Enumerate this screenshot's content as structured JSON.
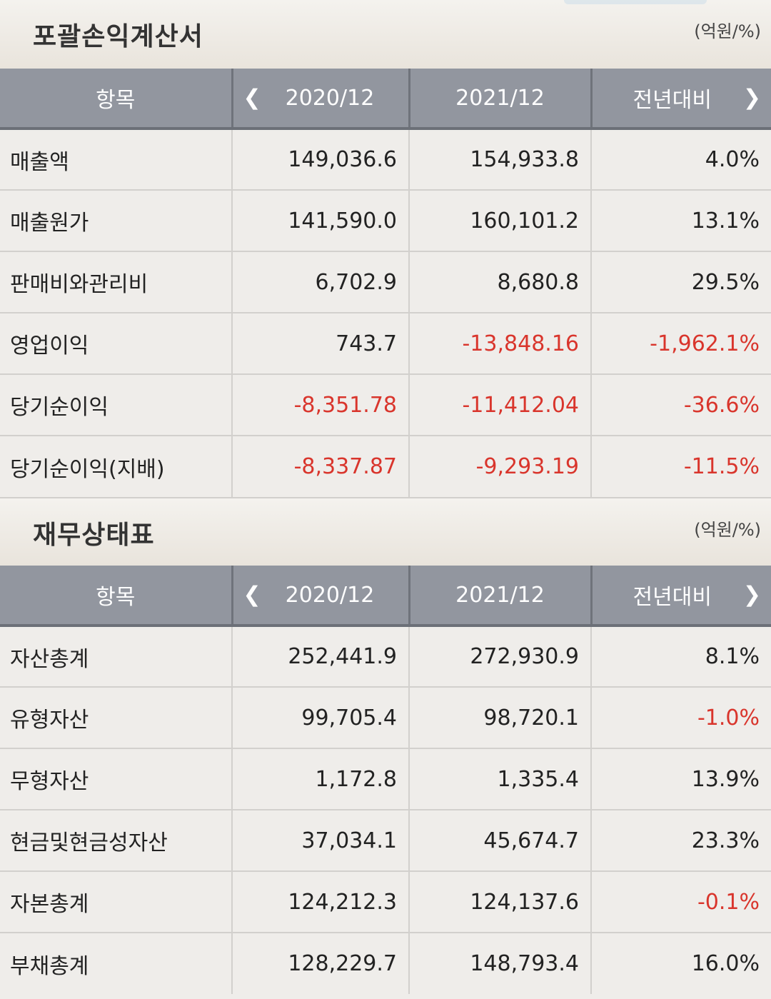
{
  "income": {
    "title": "포괄손익계산서",
    "unit": "(억원/%)",
    "headers": [
      "항목",
      "2020/12",
      "2021/12",
      "전년대비"
    ],
    "rows": [
      {
        "label": "매출액",
        "v2020": "149,036.6",
        "v2021": "154,933.8",
        "yoy": "4.0%"
      },
      {
        "label": "매출원가",
        "v2020": "141,590.0",
        "v2021": "160,101.2",
        "yoy": "13.1%"
      },
      {
        "label": "판매비와관리비",
        "v2020": "6,702.9",
        "v2021": "8,680.8",
        "yoy": "29.5%"
      },
      {
        "label": "영업이익",
        "v2020": "743.7",
        "v2021": "-13,848.16",
        "yoy": "-1,962.1%"
      },
      {
        "label": "당기순이익",
        "v2020": "-8,351.78",
        "v2021": "-11,412.04",
        "yoy": "-36.6%"
      },
      {
        "label": "당기순이익(지배)",
        "v2020": "-8,337.87",
        "v2021": "-9,293.19",
        "yoy": "-11.5%"
      }
    ]
  },
  "balance": {
    "title": "재무상태표",
    "unit": "(억원/%)",
    "headers": [
      "항목",
      "2020/12",
      "2021/12",
      "전년대비"
    ],
    "rows": [
      {
        "label": "자산총계",
        "v2020": "252,441.9",
        "v2021": "272,930.9",
        "yoy": "8.1%"
      },
      {
        "label": "유형자산",
        "v2020": "99,705.4",
        "v2021": "98,720.1",
        "yoy": "-1.0%"
      },
      {
        "label": "무형자산",
        "v2020": "1,172.8",
        "v2021": "1,335.4",
        "yoy": "13.9%"
      },
      {
        "label": "현금및현금성자산",
        "v2020": "37,034.1",
        "v2021": "45,674.7",
        "yoy": "23.3%"
      },
      {
        "label": "자본총계",
        "v2020": "124,212.3",
        "v2021": "124,137.6",
        "yoy": "-0.1%"
      },
      {
        "label": "부채총계",
        "v2020": "128,229.7",
        "v2021": "148,793.4",
        "yoy": "16.0%"
      }
    ]
  },
  "icons": {
    "prev": "chevron-left-icon",
    "next": "chevron-right-icon"
  },
  "colors": {
    "header_bg": "#92969f",
    "negative": "#d9352c",
    "row_bg": "#efedea"
  }
}
